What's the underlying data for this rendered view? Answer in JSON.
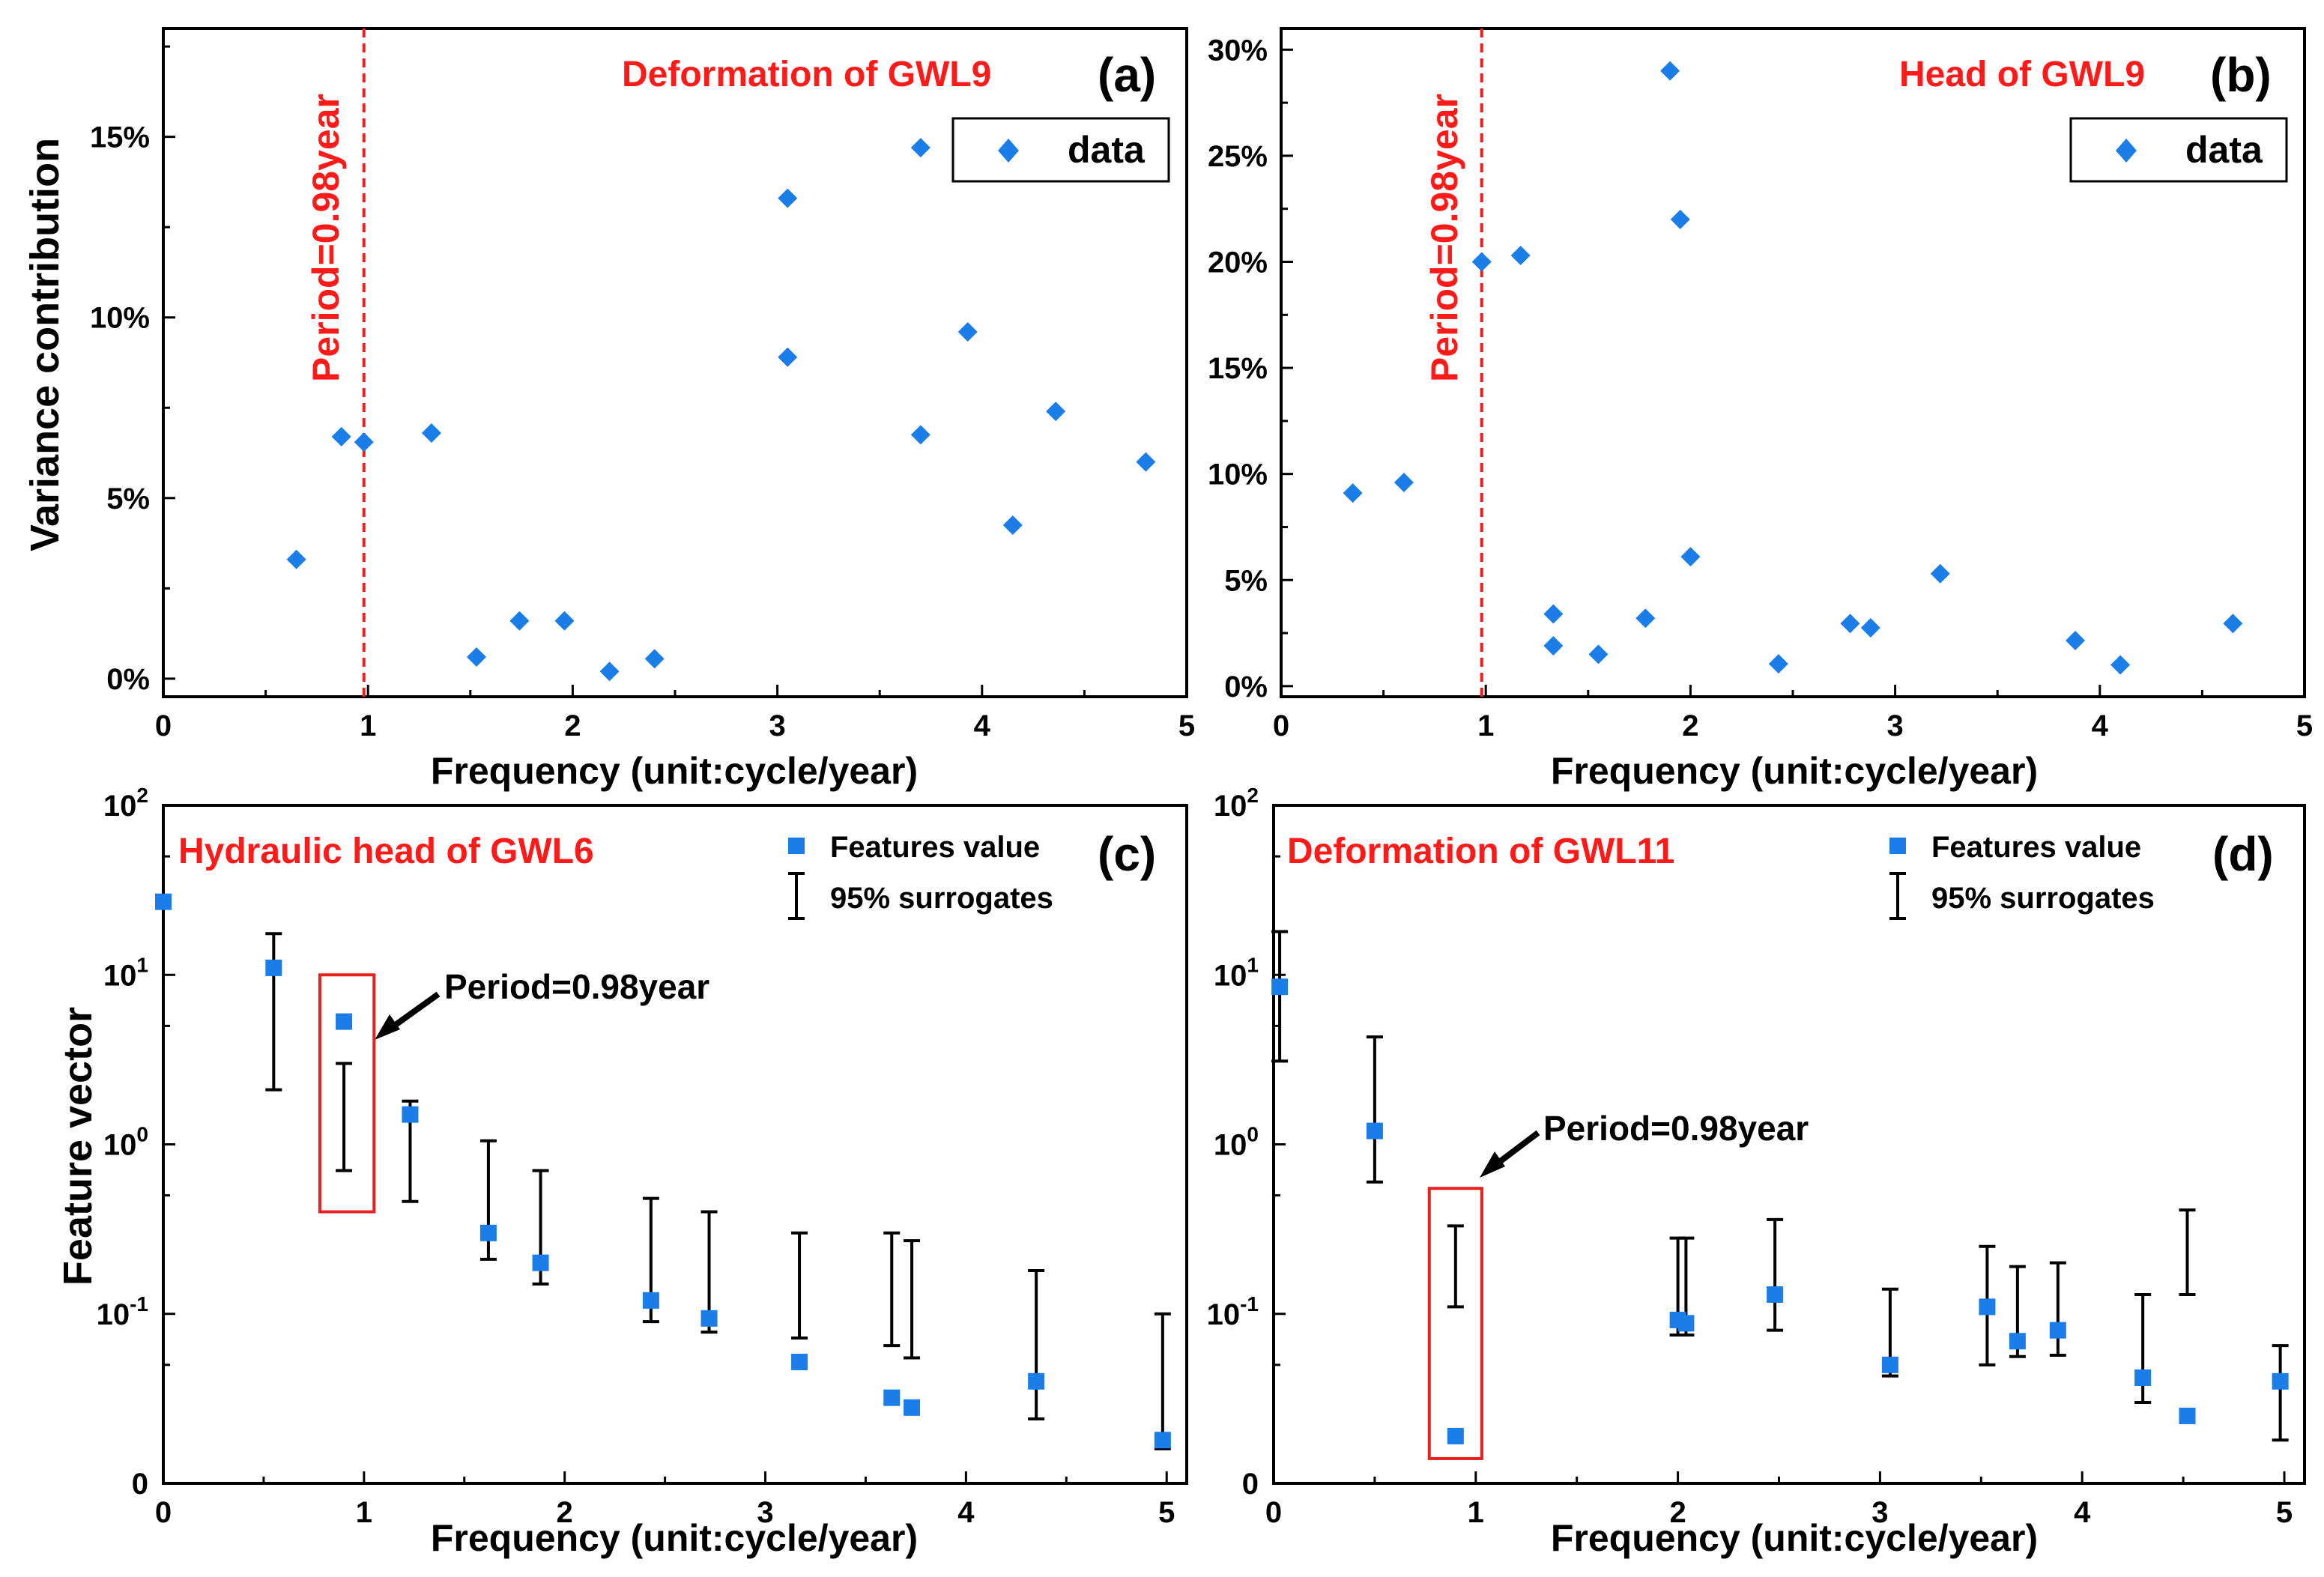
{
  "colors": {
    "marker": "#1a7de8",
    "accent": "#e8211f",
    "axis": "#000000"
  },
  "labels": {
    "period": "Period=0.98year",
    "period_annotation": "Period=0.98year",
    "xlabel": "Frequency (unit:cycle/year)"
  },
  "chart_data": [
    {
      "id": "a",
      "type": "scatter",
      "panel_label": "(a)",
      "title": "Deformation of GWL9",
      "xlabel": "Frequency (unit:cycle/year)",
      "ylabel": "Variance contribution",
      "xlim": [
        0,
        5
      ],
      "ylim": [
        -0.5,
        18
      ],
      "xticks": [
        "0",
        "1",
        "2",
        "3",
        "4",
        "5"
      ],
      "yticks": [
        "0%",
        "5%",
        "10%",
        "15%"
      ],
      "legend": "data",
      "period_line": 0.98,
      "x": [
        0.65,
        0.87,
        0.98,
        1.31,
        1.53,
        1.74,
        1.96,
        2.18,
        2.4,
        3.05,
        3.05,
        3.7,
        3.7,
        3.93,
        4.15,
        4.36,
        4.8
      ],
      "y": [
        3.3,
        6.7,
        6.55,
        6.8,
        0.6,
        1.6,
        1.6,
        0.2,
        0.55,
        13.3,
        8.9,
        14.7,
        6.75,
        9.6,
        4.25,
        7.4,
        6.0
      ]
    },
    {
      "id": "b",
      "type": "scatter",
      "panel_label": "(b)",
      "title": "Head of GWL9",
      "xlabel": "Frequency (unit:cycle/year)",
      "ylabel": "",
      "xlim": [
        0,
        5
      ],
      "ylim": [
        -0.5,
        31
      ],
      "xticks": [
        "0",
        "1",
        "2",
        "3",
        "4",
        "5"
      ],
      "yticks": [
        "0%",
        "5%",
        "10%",
        "15%",
        "20%",
        "25%",
        "30%"
      ],
      "legend": "data",
      "period_line": 0.98,
      "x": [
        0.35,
        0.6,
        0.98,
        1.17,
        1.33,
        1.33,
        1.55,
        1.78,
        1.9,
        1.95,
        2.0,
        2.43,
        2.78,
        2.88,
        3.22,
        3.88,
        4.1,
        4.65
      ],
      "y": [
        9.1,
        9.6,
        20.0,
        20.3,
        3.4,
        1.9,
        1.5,
        3.2,
        29.0,
        22.0,
        6.1,
        1.05,
        2.95,
        2.75,
        5.3,
        2.15,
        1.0,
        2.95
      ]
    },
    {
      "id": "c",
      "type": "scatter",
      "yscale": "log",
      "panel_label": "(c)",
      "title": "Hydraulic head of GWL6",
      "xlabel": "Frequency (unit:cycle/year)",
      "ylabel": "Feature vector",
      "xlim": [
        0,
        5.1
      ],
      "ylim_log10": [
        -2,
        2
      ],
      "xticks": [
        "0",
        "1",
        "2",
        "3",
        "4",
        "5"
      ],
      "yticks": [
        "0",
        "10-1",
        "100",
        "101",
        "102"
      ],
      "legend": [
        "Features value",
        "95% surrogates"
      ],
      "annotation": "Period=0.98year",
      "features": {
        "x": [
          0.0,
          0.55,
          0.9,
          1.23,
          1.62,
          1.88,
          2.43,
          2.72,
          3.17,
          3.63,
          3.73,
          4.35,
          4.98
        ],
        "y": [
          27,
          11,
          5.3,
          1.5,
          0.3,
          0.2,
          0.12,
          0.094,
          0.052,
          0.032,
          0.028,
          0.04,
          0.018
        ]
      },
      "surrogates_95": {
        "x": [
          0.55,
          0.9,
          1.23,
          1.62,
          1.88,
          2.43,
          2.72,
          3.17,
          3.63,
          3.73,
          4.35,
          4.98
        ],
        "low": [
          2.1,
          0.7,
          0.46,
          0.21,
          0.15,
          0.09,
          0.078,
          0.072,
          0.065,
          0.055,
          0.024,
          0.016
        ],
        "high": [
          17.5,
          3.0,
          1.8,
          1.05,
          0.7,
          0.48,
          0.4,
          0.3,
          0.3,
          0.27,
          0.18,
          0.1
        ]
      },
      "highlight": {
        "x": [
          0.78,
          1.05
        ],
        "y": [
          0.4,
          10
        ]
      }
    },
    {
      "id": "d",
      "type": "scatter",
      "yscale": "log",
      "panel_label": "(d)",
      "title": "Deformation of GWL11",
      "xlabel": "Frequency (unit:cycle/year)",
      "ylabel": "",
      "xlim": [
        0,
        5.1
      ],
      "ylim_log10": [
        -2,
        2
      ],
      "xticks": [
        "0",
        "1",
        "2",
        "3",
        "4",
        "5"
      ],
      "yticks": [
        "0",
        "10-1",
        "100",
        "101",
        "102"
      ],
      "legend": [
        "Features value",
        "95% surrogates"
      ],
      "annotation": "Period=0.98year",
      "features": {
        "x": [
          0.03,
          0.5,
          0.9,
          2.0,
          2.04,
          2.48,
          3.05,
          3.53,
          3.68,
          3.88,
          4.3,
          4.52,
          4.98
        ],
        "y": [
          8.5,
          1.2,
          0.019,
          0.092,
          0.088,
          0.13,
          0.05,
          0.11,
          0.069,
          0.08,
          0.042,
          0.025,
          0.04
        ]
      },
      "surrogates_95": {
        "x": [
          0.03,
          0.5,
          0.9,
          2.0,
          2.04,
          2.48,
          3.05,
          3.53,
          3.68,
          3.88,
          4.3,
          4.52,
          4.98
        ],
        "low": [
          3.1,
          0.6,
          0.11,
          0.075,
          0.075,
          0.08,
          0.043,
          0.05,
          0.056,
          0.057,
          0.03,
          0.13,
          0.018
        ],
        "high": [
          18,
          4.3,
          0.33,
          0.28,
          0.28,
          0.36,
          0.14,
          0.25,
          0.19,
          0.2,
          0.13,
          0.41,
          0.065
        ]
      },
      "highlight": {
        "x": [
          0.77,
          1.03
        ],
        "y": [
          0.014,
          0.55
        ]
      }
    }
  ]
}
